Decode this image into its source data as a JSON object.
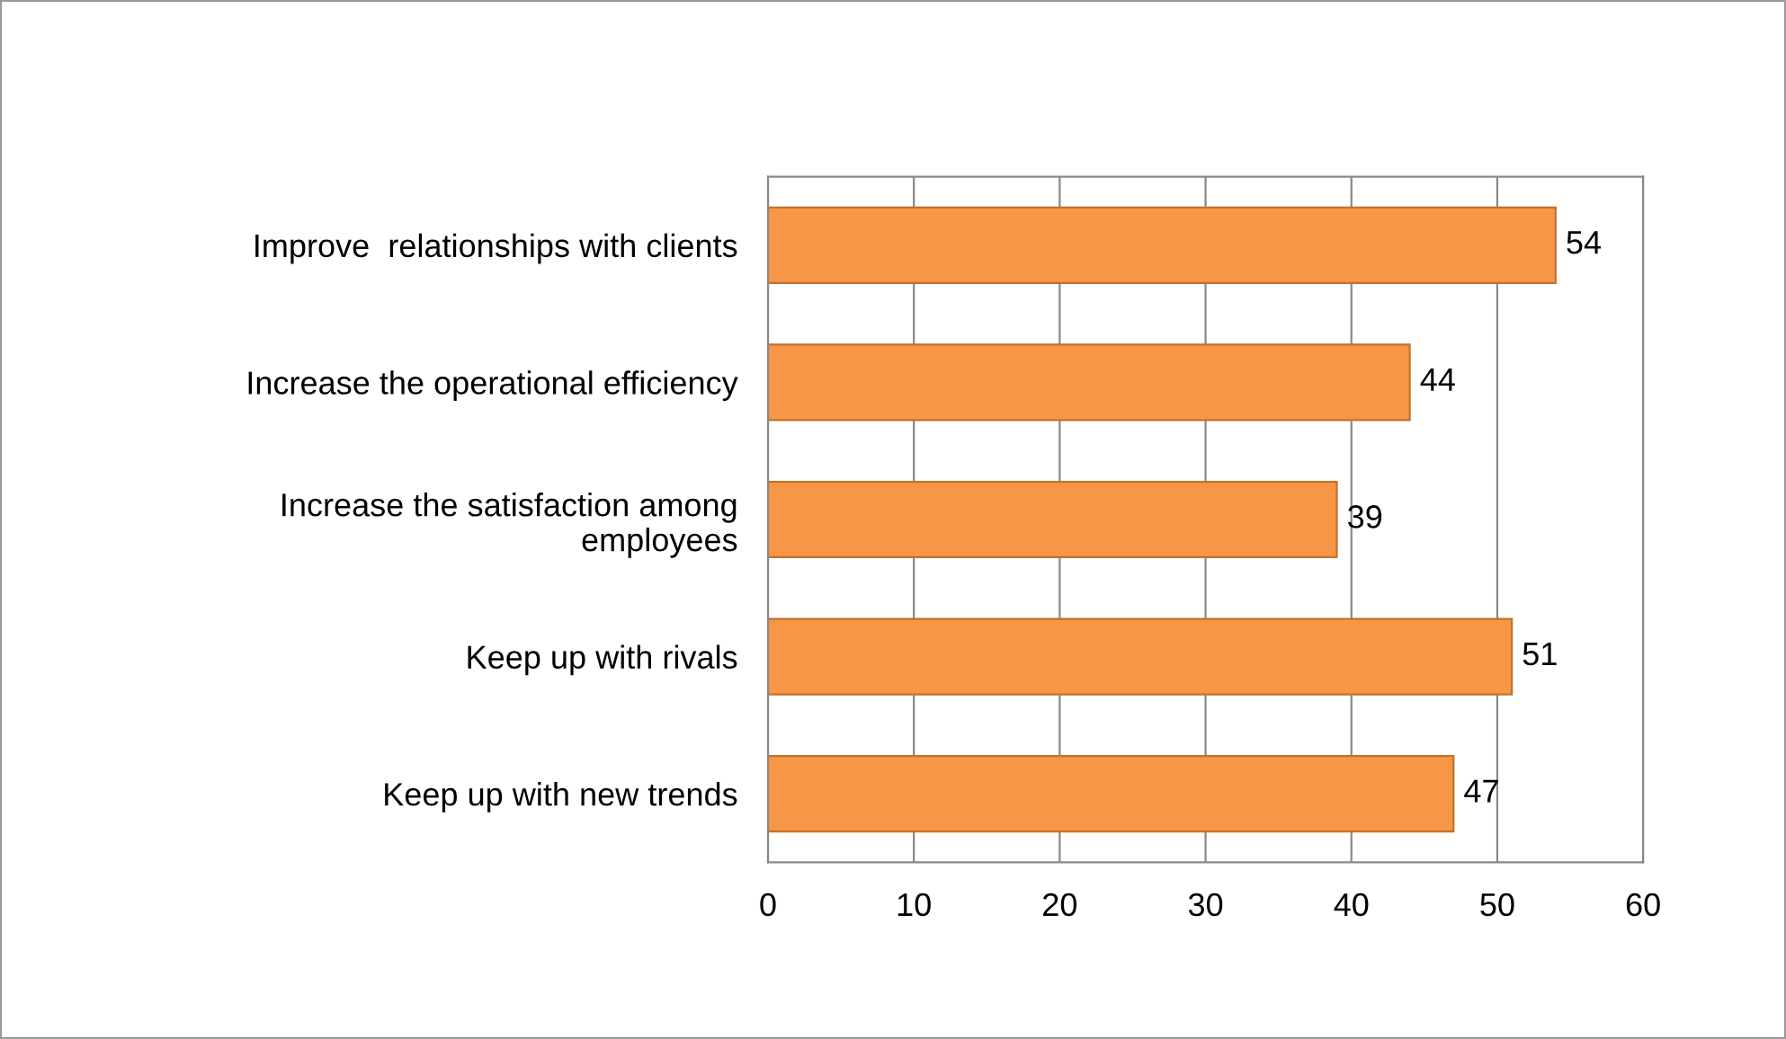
{
  "chart_data": {
    "type": "bar",
    "orientation": "horizontal",
    "categories": [
      "Improve  relationships with clients",
      "Increase the operational efficiency",
      "Increase the satisfaction among\nemployees",
      "Keep up with rivals",
      "Keep up with new trends"
    ],
    "values": [
      54,
      44,
      39,
      51,
      47
    ],
    "color": "#f79646",
    "xlim": [
      0,
      60
    ],
    "xticks": [
      0,
      10,
      20,
      30,
      40,
      50,
      60
    ],
    "grid": "x",
    "data_labels": true
  }
}
